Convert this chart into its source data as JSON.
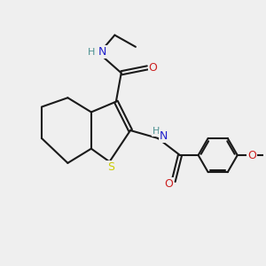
{
  "bg_color": "#efefef",
  "bond_color": "#1a1a1a",
  "line_width": 1.5,
  "font_size_label": 9,
  "colors": {
    "N": "#2020cc",
    "O": "#cc2020",
    "S": "#cccc00",
    "H": "#4a9090",
    "C": "#1a1a1a"
  },
  "xlim": [
    0,
    10
  ],
  "ylim": [
    0,
    10
  ]
}
